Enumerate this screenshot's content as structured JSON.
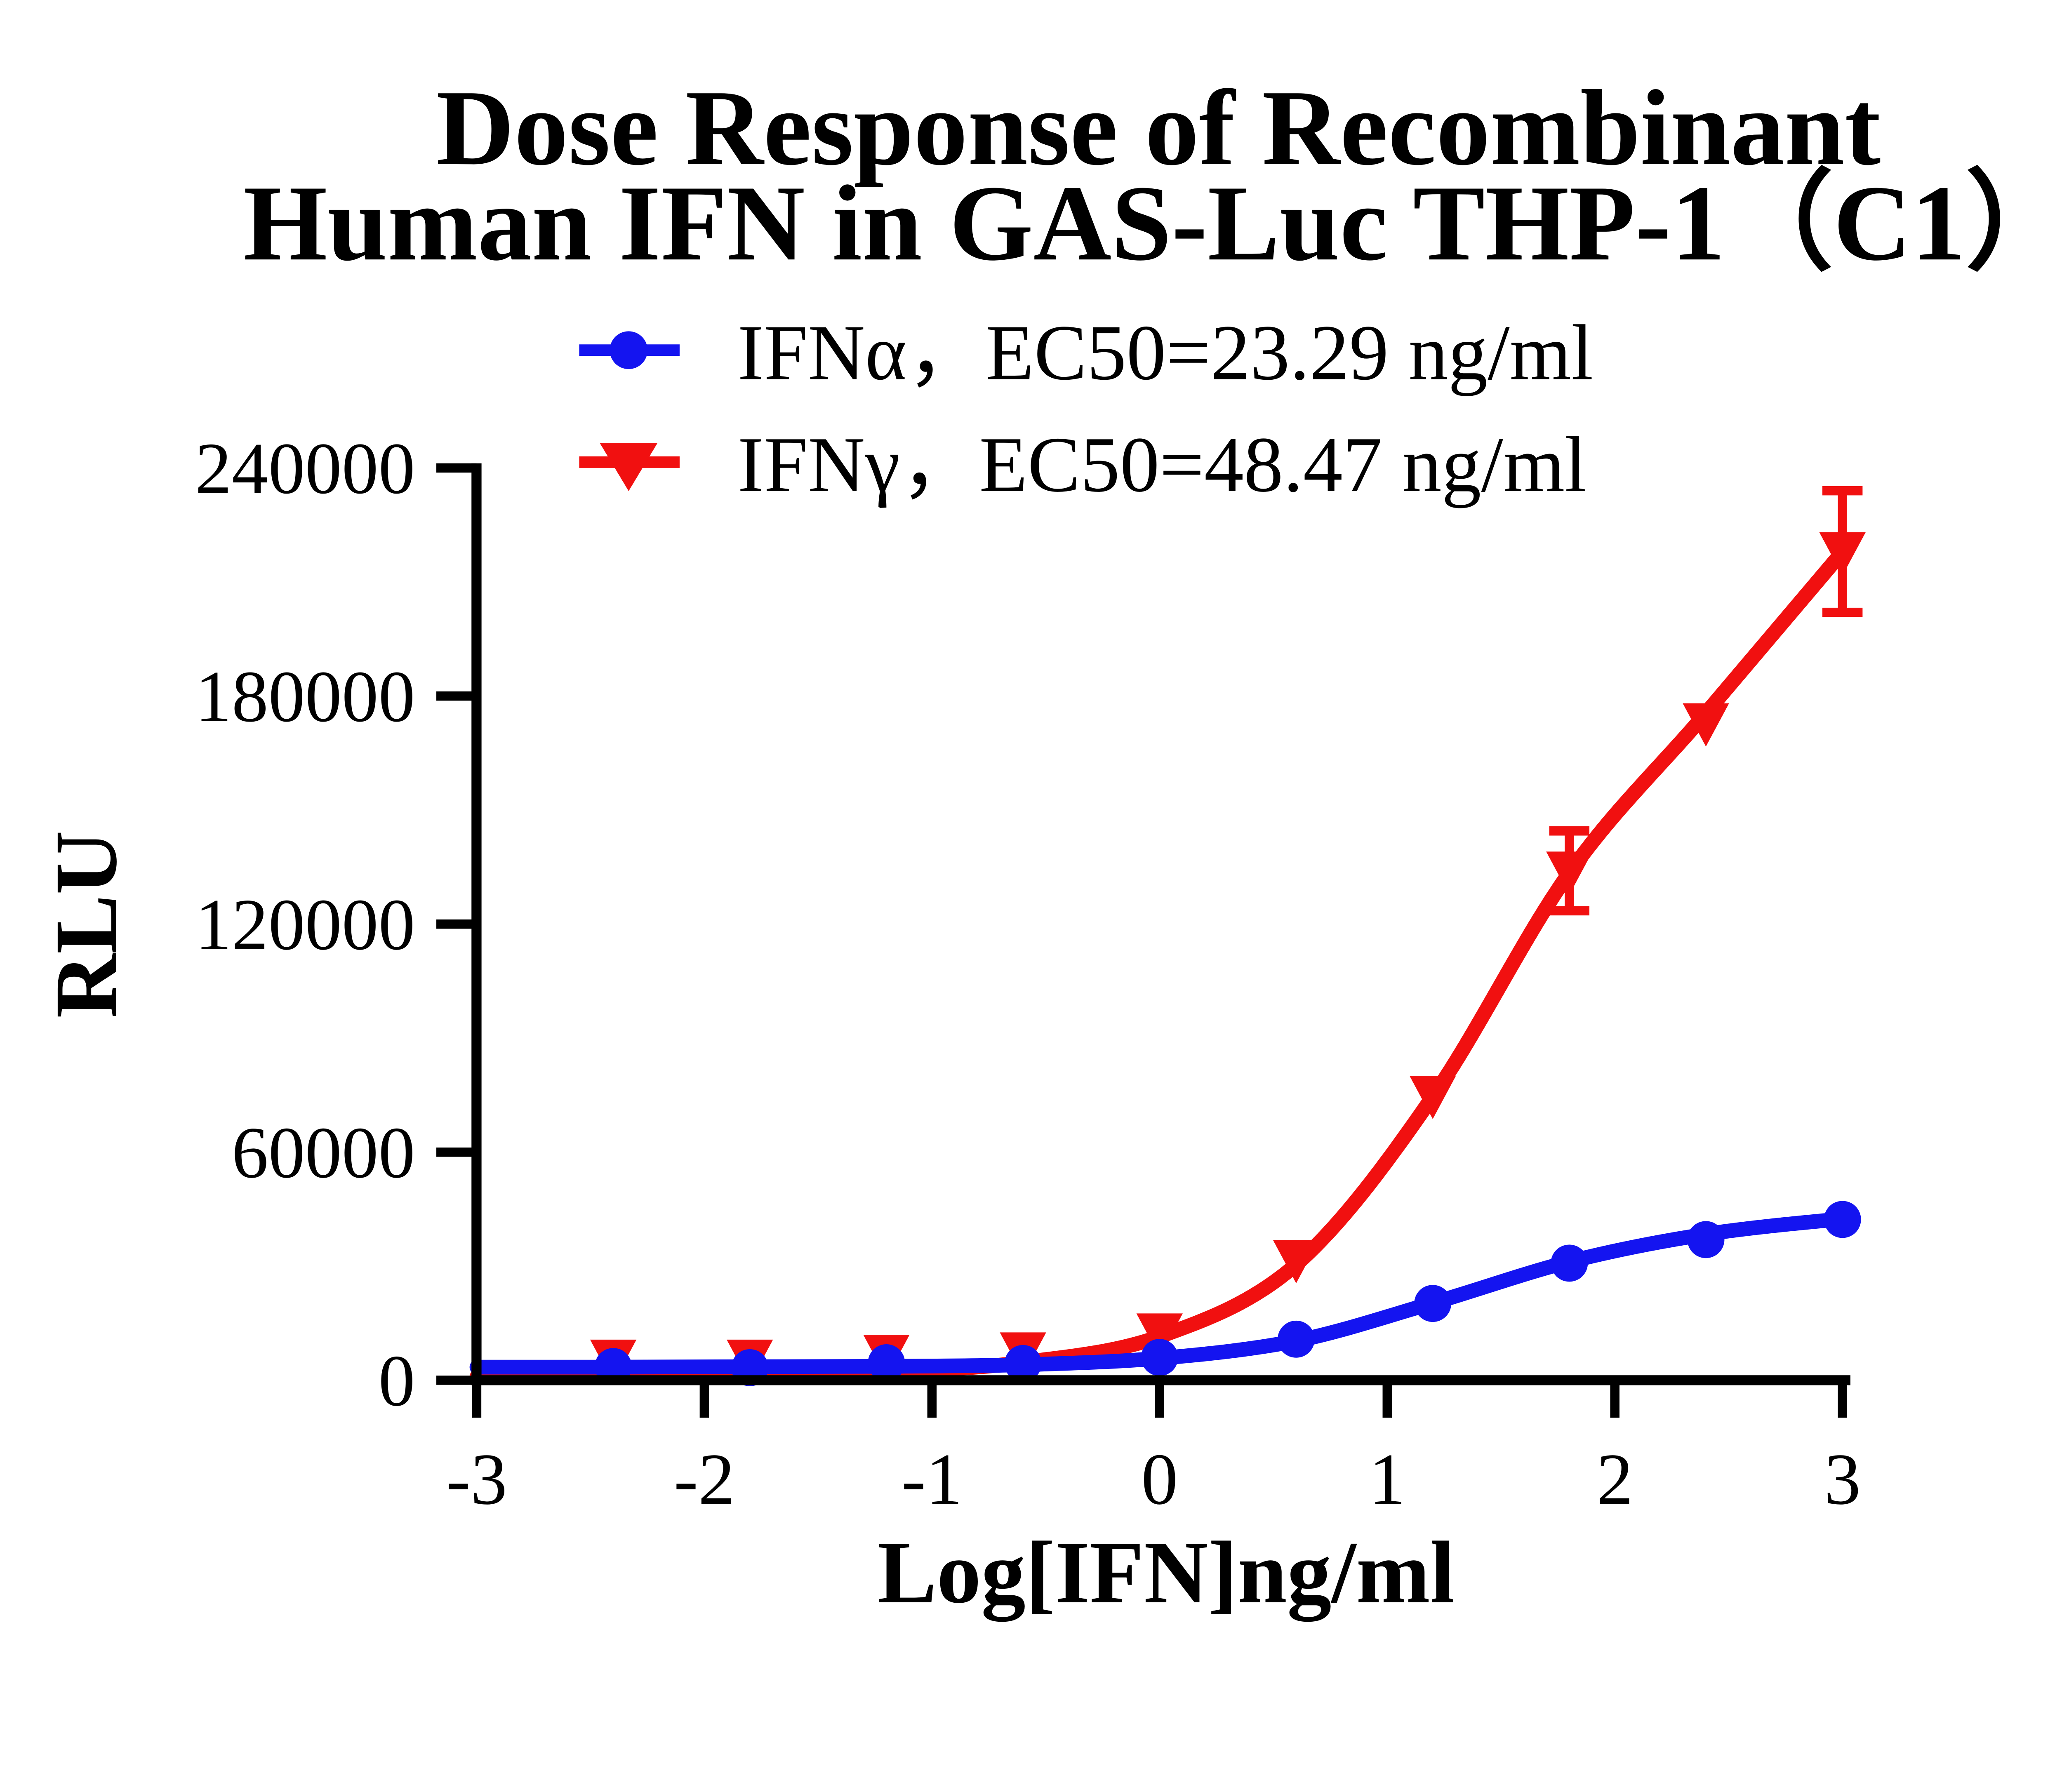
{
  "title": {
    "line1": "Dose Response of Recombinant",
    "line2": "Human IFN in GAS-Luc THP-1（C1）"
  },
  "legend": [
    {
      "label": "IFNα，EC50=23.29 ng/ml",
      "color": "#1414f0",
      "marker": "circle"
    },
    {
      "label": "IFNγ，EC50=48.47 ng/ml",
      "color": "#f11010",
      "marker": "triangle-down"
    }
  ],
  "axes": {
    "x": {
      "label": "Log[IFN]ng/ml",
      "ticks": [
        "-3",
        "-2",
        "-1",
        "0",
        "1",
        "2",
        "3"
      ],
      "range": [
        -3,
        3
      ]
    },
    "y": {
      "label": "RLU",
      "ticks": [
        "0",
        "60000",
        "120000",
        "180000",
        "240000"
      ],
      "range": [
        0,
        240000
      ]
    }
  },
  "chart_data": {
    "type": "line",
    "title": "Dose Response of Recombinant Human IFN in GAS-Luc THP-1（C1）",
    "xlabel": "Log[IFN]ng/ml",
    "ylabel": "RLU",
    "xlim": [
      -3,
      3
    ],
    "ylim": [
      0,
      240000
    ],
    "x_tick_values": [
      -3,
      -2,
      -1,
      0,
      1,
      2,
      3
    ],
    "y_tick_values": [
      0,
      60000,
      120000,
      180000,
      240000
    ],
    "grid": false,
    "legend_position": "top-center",
    "x": [
      -2.4,
      -1.8,
      -1.2,
      -0.6,
      0,
      0.6,
      1.2,
      1.8,
      2.4,
      3
    ],
    "series": [
      {
        "name": "IFNγ",
        "ec50": "EC50=48.47 ng/ml",
        "color": "#f11010",
        "marker": "triangle-down",
        "values": [
          5600,
          5600,
          6900,
          7500,
          12500,
          31800,
          75000,
          134000,
          173000,
          218000
        ],
        "errors": [
          0,
          0,
          0,
          0,
          0,
          0,
          0,
          10500,
          0,
          16000
        ],
        "fit_curve": {
          "x": [
            -3,
            -2.4,
            -1.8,
            -1.2,
            -0.6,
            0,
            0.6,
            1.2,
            1.8,
            2.4,
            3
          ],
          "y": [
            900,
            1000,
            1300,
            2200,
            4700,
            11500,
            30500,
            74500,
            133500,
            175500,
            218000
          ]
        }
      },
      {
        "name": "IFNα",
        "ec50": "EC50=23.29 ng/ml",
        "color": "#1414f0",
        "marker": "circle",
        "values": [
          3600,
          3300,
          4600,
          4400,
          6000,
          10800,
          20200,
          30800,
          37000,
          42300
        ],
        "errors": [
          0,
          0,
          0,
          0,
          0,
          0,
          0,
          0,
          0,
          0
        ],
        "fit_curve": {
          "x": [
            -3,
            -2.4,
            -1.8,
            -1.2,
            -0.6,
            0,
            0.6,
            1.2,
            1.8,
            2.4,
            3
          ],
          "y": [
            3450,
            3480,
            3540,
            3650,
            4100,
            5800,
            10400,
            20300,
            31200,
            38400,
            42500
          ]
        }
      }
    ]
  }
}
